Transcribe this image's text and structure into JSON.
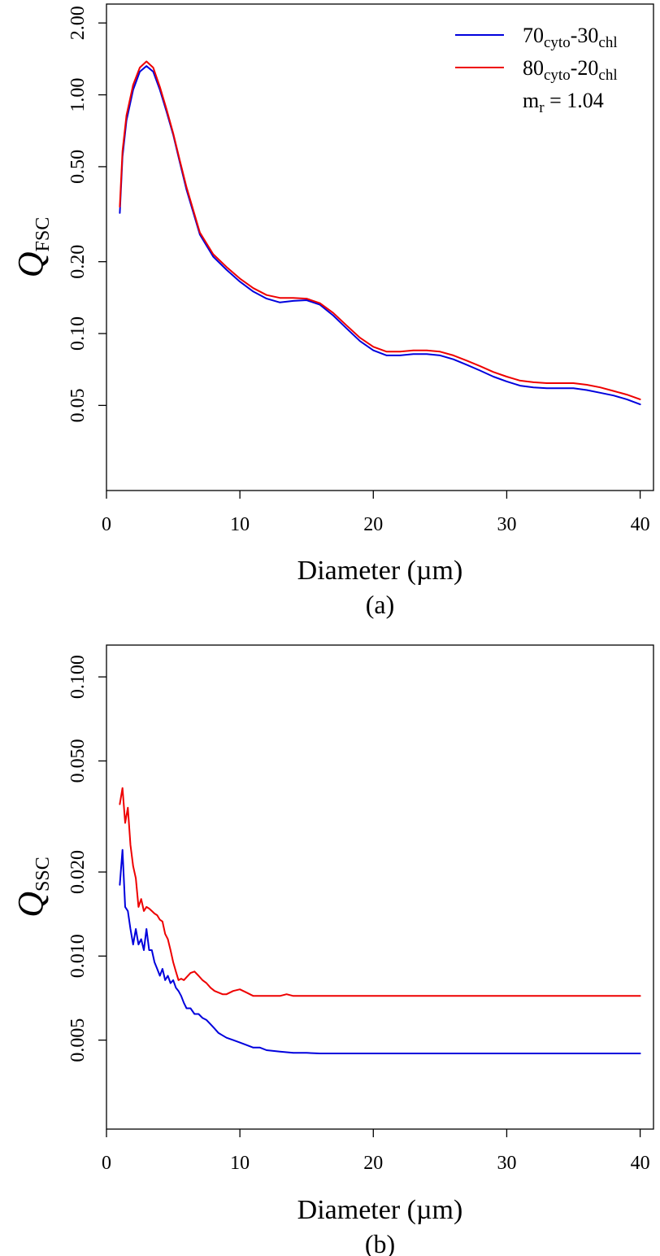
{
  "chart_data": [
    {
      "type": "line",
      "panel_label": "(a)",
      "xlabel": "Diameter (µm)",
      "ylabel_main": "Q",
      "ylabel_sub": "FSC",
      "yscale": "log",
      "xlim": [
        0,
        41
      ],
      "ylim": [
        0.022,
        2.4
      ],
      "x_ticks": [
        "0",
        "10",
        "20",
        "30",
        "40"
      ],
      "y_ticks": [
        "0.05",
        "0.10",
        "0.20",
        "0.50",
        "1.00",
        "2.00"
      ],
      "legend": {
        "placement": "top-right",
        "entries": [
          {
            "base": "70",
            "sub1": "cyto",
            "mid": "-30",
            "sub2": "chl",
            "color": "#0000dd"
          },
          {
            "base": "80",
            "sub1": "cyto",
            "mid": "-20",
            "sub2": "chl",
            "color": "#ee0000"
          }
        ],
        "note_base": "m",
        "note_sub": "r",
        "note_rest": " = 1.04"
      },
      "series": [
        {
          "color": "#0000dd",
          "x": [
            1,
            1.2,
            1.5,
            2,
            2.5,
            3,
            3.5,
            4,
            4.5,
            5,
            5.5,
            6,
            7,
            8,
            9,
            10,
            11,
            12,
            13,
            14,
            15,
            16,
            17,
            18,
            19,
            20,
            21,
            22,
            23,
            24,
            25,
            26,
            27,
            28,
            29,
            30,
            31,
            32,
            33,
            34,
            35,
            36,
            37,
            38,
            39,
            40
          ],
          "y": [
            0.32,
            0.55,
            0.78,
            1.05,
            1.25,
            1.32,
            1.25,
            1.05,
            0.85,
            0.68,
            0.52,
            0.4,
            0.26,
            0.21,
            0.185,
            0.165,
            0.15,
            0.14,
            0.135,
            0.137,
            0.138,
            0.132,
            0.119,
            0.105,
            0.093,
            0.085,
            0.081,
            0.081,
            0.082,
            0.082,
            0.081,
            0.078,
            0.074,
            0.07,
            0.066,
            0.063,
            0.0605,
            0.0595,
            0.059,
            0.059,
            0.059,
            0.058,
            0.0565,
            0.055,
            0.053,
            0.0505
          ]
        },
        {
          "color": "#ee0000",
          "x": [
            1,
            1.2,
            1.5,
            2,
            2.5,
            3,
            3.5,
            4,
            4.5,
            5,
            5.5,
            6,
            7,
            8,
            9,
            10,
            11,
            12,
            13,
            14,
            15,
            16,
            17,
            18,
            19,
            20,
            21,
            22,
            23,
            24,
            25,
            26,
            27,
            28,
            29,
            30,
            31,
            32,
            33,
            34,
            35,
            36,
            37,
            38,
            39,
            40
          ],
          "y": [
            0.34,
            0.58,
            0.82,
            1.1,
            1.3,
            1.38,
            1.3,
            1.08,
            0.87,
            0.69,
            0.53,
            0.41,
            0.265,
            0.215,
            0.19,
            0.17,
            0.155,
            0.145,
            0.141,
            0.141,
            0.14,
            0.134,
            0.122,
            0.108,
            0.096,
            0.088,
            0.084,
            0.084,
            0.085,
            0.085,
            0.084,
            0.081,
            0.077,
            0.073,
            0.069,
            0.066,
            0.0635,
            0.0625,
            0.062,
            0.062,
            0.062,
            0.061,
            0.0595,
            0.0575,
            0.0555,
            0.053
          ]
        }
      ]
    },
    {
      "type": "line",
      "panel_label": "(b)",
      "xlabel": "Diameter (µm)",
      "ylabel_main": "Q",
      "ylabel_sub": "SSC",
      "yscale": "log",
      "xlim": [
        0,
        41
      ],
      "ylim": [
        0.0024,
        0.13
      ],
      "x_ticks": [
        "0",
        "10",
        "20",
        "30",
        "40"
      ],
      "y_ticks": [
        "0.005",
        "0.010",
        "0.020",
        "0.050",
        "0.100"
      ],
      "series": [
        {
          "color": "#0000dd",
          "x": [
            1,
            1.2,
            1.4,
            1.6,
            1.8,
            2.0,
            2.2,
            2.4,
            2.6,
            2.8,
            3.0,
            3.2,
            3.4,
            3.6,
            3.8,
            4.0,
            4.2,
            4.4,
            4.6,
            4.8,
            5.0,
            5.2,
            5.4,
            5.6,
            5.8,
            6.0,
            6.3,
            6.6,
            6.9,
            7.2,
            7.5,
            7.8,
            8.1,
            8.4,
            8.7,
            9.0,
            9.5,
            10,
            10.5,
            11,
            11.5,
            12,
            13,
            14,
            15,
            16,
            18,
            20,
            25,
            30,
            35,
            40
          ],
          "y": [
            0.018,
            0.024,
            0.015,
            0.0145,
            0.0125,
            0.011,
            0.0125,
            0.011,
            0.0115,
            0.0105,
            0.0125,
            0.0105,
            0.0105,
            0.0095,
            0.009,
            0.0085,
            0.009,
            0.0082,
            0.0085,
            0.008,
            0.0082,
            0.0077,
            0.0075,
            0.0072,
            0.0068,
            0.0065,
            0.0065,
            0.0062,
            0.0062,
            0.006,
            0.0059,
            0.0057,
            0.0055,
            0.0053,
            0.0052,
            0.0051,
            0.005,
            0.0049,
            0.0048,
            0.0047,
            0.0047,
            0.0046,
            0.00455,
            0.0045,
            0.0045,
            0.00448,
            0.00448,
            0.00448,
            0.00448,
            0.00448,
            0.00448,
            0.00448
          ]
        },
        {
          "color": "#ee0000",
          "x": [
            1,
            1.2,
            1.4,
            1.6,
            1.8,
            2.0,
            2.2,
            2.4,
            2.6,
            2.8,
            3.0,
            3.2,
            3.4,
            3.6,
            3.8,
            4.0,
            4.2,
            4.4,
            4.6,
            4.8,
            5.0,
            5.2,
            5.4,
            5.6,
            5.8,
            6.0,
            6.3,
            6.6,
            6.9,
            7.2,
            7.5,
            7.8,
            8.1,
            8.4,
            8.7,
            9.0,
            9.5,
            10,
            10.5,
            11,
            11.5,
            12,
            13,
            13.5,
            14,
            15,
            16,
            18,
            20,
            25,
            30,
            35,
            40
          ],
          "y": [
            0.035,
            0.04,
            0.03,
            0.034,
            0.025,
            0.021,
            0.019,
            0.015,
            0.016,
            0.0145,
            0.015,
            0.0148,
            0.0145,
            0.0142,
            0.014,
            0.0135,
            0.0133,
            0.012,
            0.0115,
            0.0105,
            0.0095,
            0.0088,
            0.0082,
            0.0083,
            0.0082,
            0.0084,
            0.0087,
            0.0088,
            0.0085,
            0.0082,
            0.008,
            0.0077,
            0.0075,
            0.0074,
            0.0073,
            0.0073,
            0.0075,
            0.0076,
            0.0074,
            0.0072,
            0.0072,
            0.0072,
            0.0072,
            0.0073,
            0.0072,
            0.0072,
            0.0072,
            0.0072,
            0.0072,
            0.0072,
            0.0072,
            0.0072,
            0.0072
          ]
        }
      ]
    }
  ]
}
